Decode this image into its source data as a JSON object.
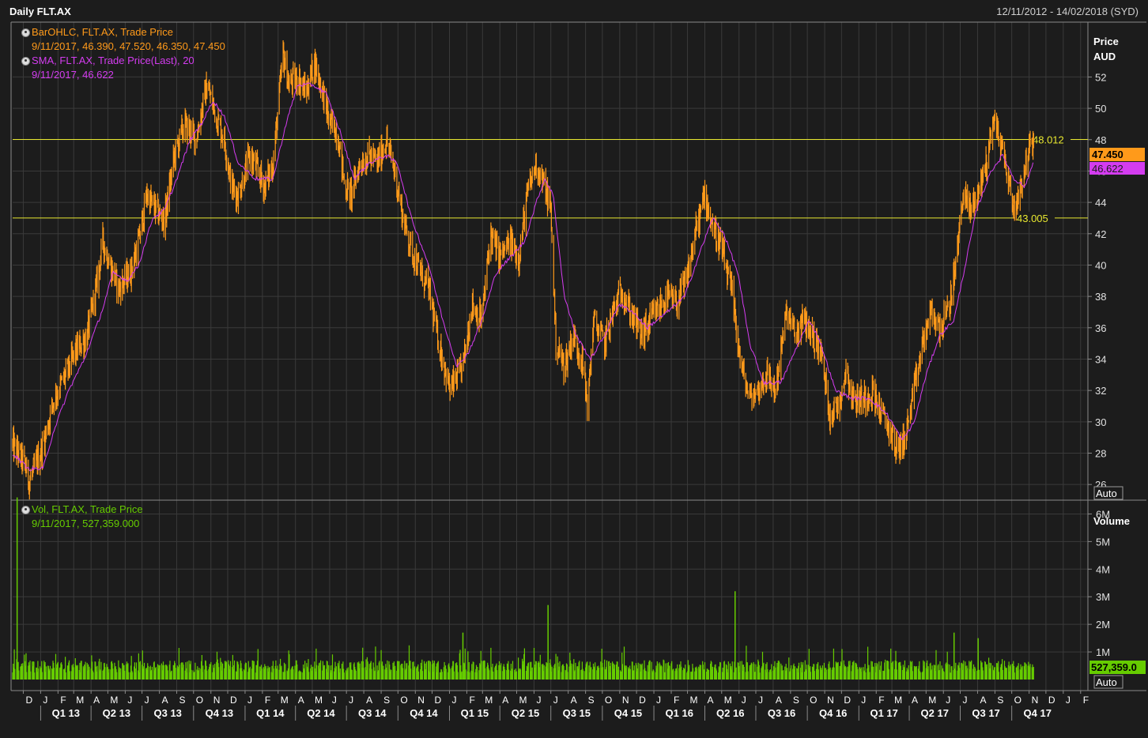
{
  "header": {
    "title": "Daily FLT.AX",
    "date_range": "12/11/2012 - 14/02/2018 (SYD)"
  },
  "legend": {
    "ohlc_title": "BarOHLC, FLT.AX, Trade Price",
    "ohlc_values": "9/11/2017, 46.390, 47.520, 46.350, 47.450",
    "sma_title": "SMA, FLT.AX, Trade Price(Last),  20",
    "sma_values": "9/11/2017, 46.622",
    "vol_title": "Vol, FLT.AX, Trade Price",
    "vol_values": "9/11/2017, 527,359.000"
  },
  "price_axis": {
    "title_line1": "Price",
    "title_line2": "AUD",
    "auto_label": "Auto",
    "last_price_label": "47.450",
    "sma_label": "46.622"
  },
  "volume_axis": {
    "title": "Volume",
    "auto_label": "Auto",
    "last_volume_label": "527,359.0"
  },
  "colors": {
    "background": "#1c1c1c",
    "grid": "#3a3a3a",
    "price": "#ff9a1a",
    "sma": "#d43cf0",
    "volume": "#66cc00",
    "hline": "#e8e830"
  },
  "chart_data": [
    {
      "type": "line",
      "title": "Daily FLT.AX",
      "ylabel": "Price AUD",
      "xlim": [
        "2012-11-12",
        "2018-02-14"
      ],
      "ylim": [
        25,
        55.5
      ],
      "yticks": [
        26,
        28,
        30,
        32,
        34,
        36,
        38,
        40,
        42,
        44,
        46,
        48,
        50,
        52
      ],
      "month_ticks": [
        "D",
        "J",
        "F",
        "M",
        "A",
        "M",
        "J",
        "J",
        "A",
        "S",
        "O",
        "N",
        "D",
        "J",
        "F",
        "M",
        "A",
        "M",
        "J",
        "J",
        "A",
        "S",
        "O",
        "N",
        "D",
        "J",
        "F",
        "M",
        "A",
        "M",
        "J",
        "J",
        "A",
        "S",
        "O",
        "N",
        "D",
        "J",
        "F",
        "M",
        "A",
        "M",
        "J",
        "J",
        "A",
        "S",
        "O",
        "N",
        "D",
        "J",
        "F",
        "M",
        "A",
        "M",
        "J",
        "J",
        "A",
        "S",
        "O",
        "N",
        "D",
        "J",
        "F"
      ],
      "quarter_ticks": [
        "Q1 13",
        "Q2 13",
        "Q3 13",
        "Q4 13",
        "Q1 14",
        "Q2 14",
        "Q3 14",
        "Q4 14",
        "Q1 15",
        "Q2 15",
        "Q3 15",
        "Q4 15",
        "Q1 16",
        "Q2 16",
        "Q3 16",
        "Q4 16",
        "Q1 17",
        "Q2 17",
        "Q3 17",
        "Q4 17"
      ],
      "horizontal_lines": [
        {
          "value": 48.012,
          "label": "48.012"
        },
        {
          "value": 43.005,
          "label": "43.005"
        }
      ],
      "series": [
        {
          "name": "BarOHLC, FLT.AX, Trade Price",
          "points": [
            [
              "2012-11-12",
              28.5
            ],
            [
              "2012-12-01",
              27.5
            ],
            [
              "2012-12-12",
              26.2
            ],
            [
              "2013-01-05",
              28.5
            ],
            [
              "2013-01-25",
              31.5
            ],
            [
              "2013-02-15",
              33.0
            ],
            [
              "2013-03-05",
              34.5
            ],
            [
              "2013-03-25",
              35.5
            ],
            [
              "2013-04-10",
              38.5
            ],
            [
              "2013-04-22",
              41.5
            ],
            [
              "2013-05-05",
              40.0
            ],
            [
              "2013-05-20",
              38.5
            ],
            [
              "2013-06-10",
              39.5
            ],
            [
              "2013-06-25",
              41.5
            ],
            [
              "2013-07-10",
              44.5
            ],
            [
              "2013-07-25",
              43.5
            ],
            [
              "2013-08-10",
              42.8
            ],
            [
              "2013-08-28",
              47.0
            ],
            [
              "2013-09-15",
              49.0
            ],
            [
              "2013-10-05",
              48.0
            ],
            [
              "2013-10-25",
              51.5
            ],
            [
              "2013-11-10",
              49.5
            ],
            [
              "2013-11-25",
              48.0
            ],
            [
              "2013-12-08",
              45.0
            ],
            [
              "2013-12-20",
              44.5
            ],
            [
              "2014-01-10",
              47.0
            ],
            [
              "2014-02-05",
              45.0
            ],
            [
              "2014-02-20",
              46.5
            ],
            [
              "2014-03-10",
              53.5
            ],
            [
              "2014-03-20",
              51.5
            ],
            [
              "2014-04-05",
              52.0
            ],
            [
              "2014-04-20",
              51.0
            ],
            [
              "2014-05-05",
              53.0
            ],
            [
              "2014-05-20",
              51.0
            ],
            [
              "2014-06-01",
              49.0
            ],
            [
              "2014-06-15",
              48.5
            ],
            [
              "2014-06-28",
              45.0
            ],
            [
              "2014-07-10",
              44.5
            ],
            [
              "2014-07-25",
              46.5
            ],
            [
              "2014-08-10",
              47.0
            ],
            [
              "2014-08-25",
              46.5
            ],
            [
              "2014-09-10",
              48.0
            ],
            [
              "2014-09-25",
              46.0
            ],
            [
              "2014-10-10",
              43.0
            ],
            [
              "2014-10-25",
              41.0
            ],
            [
              "2014-11-10",
              39.5
            ],
            [
              "2014-11-25",
              38.5
            ],
            [
              "2014-12-10",
              35.5
            ],
            [
              "2015-01-02",
              32.0
            ],
            [
              "2015-01-25",
              33.5
            ],
            [
              "2015-02-10",
              37.5
            ],
            [
              "2015-02-28",
              36.5
            ],
            [
              "2015-03-15",
              42.0
            ],
            [
              "2015-04-01",
              40.5
            ],
            [
              "2015-04-20",
              41.5
            ],
            [
              "2015-05-05",
              40.5
            ],
            [
              "2015-05-20",
              44.5
            ],
            [
              "2015-06-05",
              46.5
            ],
            [
              "2015-06-20",
              45.0
            ],
            [
              "2015-07-01",
              43.5
            ],
            [
              "2015-07-10",
              35.0
            ],
            [
              "2015-07-25",
              33.5
            ],
            [
              "2015-08-10",
              35.5
            ],
            [
              "2015-08-25",
              34.0
            ],
            [
              "2015-09-05",
              31.0
            ],
            [
              "2015-09-15",
              36.5
            ],
            [
              "2015-10-05",
              35.0
            ],
            [
              "2015-10-20",
              37.0
            ],
            [
              "2015-11-05",
              38.5
            ],
            [
              "2015-11-20",
              37.0
            ],
            [
              "2015-12-10",
              35.5
            ],
            [
              "2016-01-05",
              37.0
            ],
            [
              "2016-01-25",
              38.0
            ],
            [
              "2016-02-10",
              37.5
            ],
            [
              "2016-02-28",
              39.0
            ],
            [
              "2016-03-15",
              42.0
            ],
            [
              "2016-04-01",
              44.5
            ],
            [
              "2016-04-15",
              42.5
            ],
            [
              "2016-05-01",
              41.0
            ],
            [
              "2016-05-20",
              38.0
            ],
            [
              "2016-06-05",
              33.5
            ],
            [
              "2016-06-20",
              31.5
            ],
            [
              "2016-07-05",
              32.0
            ],
            [
              "2016-07-20",
              33.0
            ],
            [
              "2016-08-05",
              32.0
            ],
            [
              "2016-08-25",
              37.0
            ],
            [
              "2016-09-10",
              35.5
            ],
            [
              "2016-09-25",
              36.5
            ],
            [
              "2016-10-10",
              35.5
            ],
            [
              "2016-10-25",
              34.5
            ],
            [
              "2016-11-10",
              30.5
            ],
            [
              "2016-11-25",
              31.0
            ],
            [
              "2016-12-10",
              33.5
            ],
            [
              "2016-12-20",
              31.5
            ],
            [
              "2017-01-10",
              31.5
            ],
            [
              "2017-01-25",
              32.0
            ],
            [
              "2017-02-10",
              30.5
            ],
            [
              "2017-02-25",
              29.5
            ],
            [
              "2017-03-10",
              28.2
            ],
            [
              "2017-03-25",
              29.0
            ],
            [
              "2017-04-10",
              32.0
            ],
            [
              "2017-04-25",
              35.0
            ],
            [
              "2017-05-10",
              37.0
            ],
            [
              "2017-05-25",
              36.0
            ],
            [
              "2017-06-10",
              37.0
            ],
            [
              "2017-06-25",
              40.5
            ],
            [
              "2017-07-05",
              44.5
            ],
            [
              "2017-07-20",
              43.5
            ],
            [
              "2017-08-05",
              45.0
            ],
            [
              "2017-08-20",
              47.0
            ],
            [
              "2017-08-28",
              49.5
            ],
            [
              "2017-09-10",
              48.0
            ],
            [
              "2017-09-25",
              45.5
            ],
            [
              "2017-10-05",
              43.5
            ],
            [
              "2017-10-20",
              45.5
            ],
            [
              "2017-11-01",
              47.5
            ],
            [
              "2017-11-09",
              47.45
            ]
          ]
        },
        {
          "name": "SMA, FLT.AX, Trade Price(Last),  20",
          "points": [
            [
              "2012-11-12",
              28.0
            ],
            [
              "2012-12-10",
              27.0
            ],
            [
              "2013-01-05",
              27.0
            ],
            [
              "2013-01-25",
              29.5
            ],
            [
              "2013-02-20",
              32.0
            ],
            [
              "2013-03-20",
              34.0
            ],
            [
              "2013-04-20",
              37.0
            ],
            [
              "2013-05-10",
              39.5
            ],
            [
              "2013-06-05",
              39.0
            ],
            [
              "2013-06-25",
              40.0
            ],
            [
              "2013-07-20",
              43.0
            ],
            [
              "2013-08-10",
              43.5
            ],
            [
              "2013-09-01",
              45.5
            ],
            [
              "2013-09-25",
              48.0
            ],
            [
              "2013-10-15",
              49.0
            ],
            [
              "2013-11-05",
              50.5
            ],
            [
              "2013-11-25",
              49.5
            ],
            [
              "2013-12-20",
              46.5
            ],
            [
              "2014-01-20",
              45.5
            ],
            [
              "2014-02-20",
              45.5
            ],
            [
              "2014-03-15",
              49.0
            ],
            [
              "2014-04-05",
              51.5
            ],
            [
              "2014-05-01",
              51.5
            ],
            [
              "2014-05-25",
              51.0
            ],
            [
              "2014-06-20",
              48.5
            ],
            [
              "2014-07-15",
              45.5
            ],
            [
              "2014-08-10",
              46.5
            ],
            [
              "2014-09-10",
              47.0
            ],
            [
              "2014-09-30",
              46.5
            ],
            [
              "2014-10-25",
              43.0
            ],
            [
              "2014-11-25",
              40.0
            ],
            [
              "2014-12-20",
              36.5
            ],
            [
              "2015-01-15",
              33.5
            ],
            [
              "2015-02-05",
              34.5
            ],
            [
              "2015-02-28",
              36.5
            ],
            [
              "2015-03-25",
              39.5
            ],
            [
              "2015-04-20",
              40.5
            ],
            [
              "2015-05-15",
              41.5
            ],
            [
              "2015-06-05",
              44.0
            ],
            [
              "2015-06-20",
              45.5
            ],
            [
              "2015-07-05",
              44.5
            ],
            [
              "2015-07-25",
              38.0
            ],
            [
              "2015-08-15",
              35.5
            ],
            [
              "2015-09-10",
              34.0
            ],
            [
              "2015-10-05",
              35.5
            ],
            [
              "2015-10-30",
              37.5
            ],
            [
              "2015-11-25",
              37.0
            ],
            [
              "2015-12-20",
              36.0
            ],
            [
              "2016-01-25",
              37.0
            ],
            [
              "2016-02-25",
              38.0
            ],
            [
              "2016-03-25",
              41.0
            ],
            [
              "2016-04-15",
              43.0
            ],
            [
              "2016-05-05",
              42.0
            ],
            [
              "2016-05-30",
              39.5
            ],
            [
              "2016-06-20",
              35.0
            ],
            [
              "2016-07-15",
              32.5
            ],
            [
              "2016-08-15",
              32.5
            ],
            [
              "2016-09-15",
              35.0
            ],
            [
              "2016-10-05",
              36.5
            ],
            [
              "2016-10-25",
              35.0
            ],
            [
              "2016-11-20",
              32.0
            ],
            [
              "2016-12-20",
              31.5
            ],
            [
              "2017-01-20",
              31.5
            ],
            [
              "2017-02-20",
              30.5
            ],
            [
              "2017-03-20",
              28.8
            ],
            [
              "2017-04-10",
              30.0
            ],
            [
              "2017-05-01",
              33.0
            ],
            [
              "2017-05-25",
              35.5
            ],
            [
              "2017-06-20",
              36.5
            ],
            [
              "2017-07-10",
              40.0
            ],
            [
              "2017-07-30",
              43.5
            ],
            [
              "2017-08-25",
              46.0
            ],
            [
              "2017-09-15",
              47.0
            ],
            [
              "2017-10-05",
              45.5
            ],
            [
              "2017-10-25",
              45.0
            ],
            [
              "2017-11-09",
              46.622
            ]
          ]
        }
      ]
    },
    {
      "type": "bar",
      "title": "Vol, FLT.AX, Trade Price",
      "ylabel": "Volume",
      "ylim": [
        0,
        6500000
      ],
      "yticks": [
        "1M",
        "2M",
        "3M",
        "4M",
        "5M",
        "6M"
      ],
      "baseline_volume": 500000,
      "spikes": [
        {
          "date": "2012-11-20",
          "value": 6600000
        },
        {
          "date": "2015-01-25",
          "value": 1700000
        },
        {
          "date": "2015-06-26",
          "value": 2700000
        },
        {
          "date": "2016-05-25",
          "value": 3200000
        },
        {
          "date": "2017-06-20",
          "value": 1700000
        },
        {
          "date": "2017-08-02",
          "value": 1500000
        }
      ],
      "last_value": 527359
    }
  ]
}
